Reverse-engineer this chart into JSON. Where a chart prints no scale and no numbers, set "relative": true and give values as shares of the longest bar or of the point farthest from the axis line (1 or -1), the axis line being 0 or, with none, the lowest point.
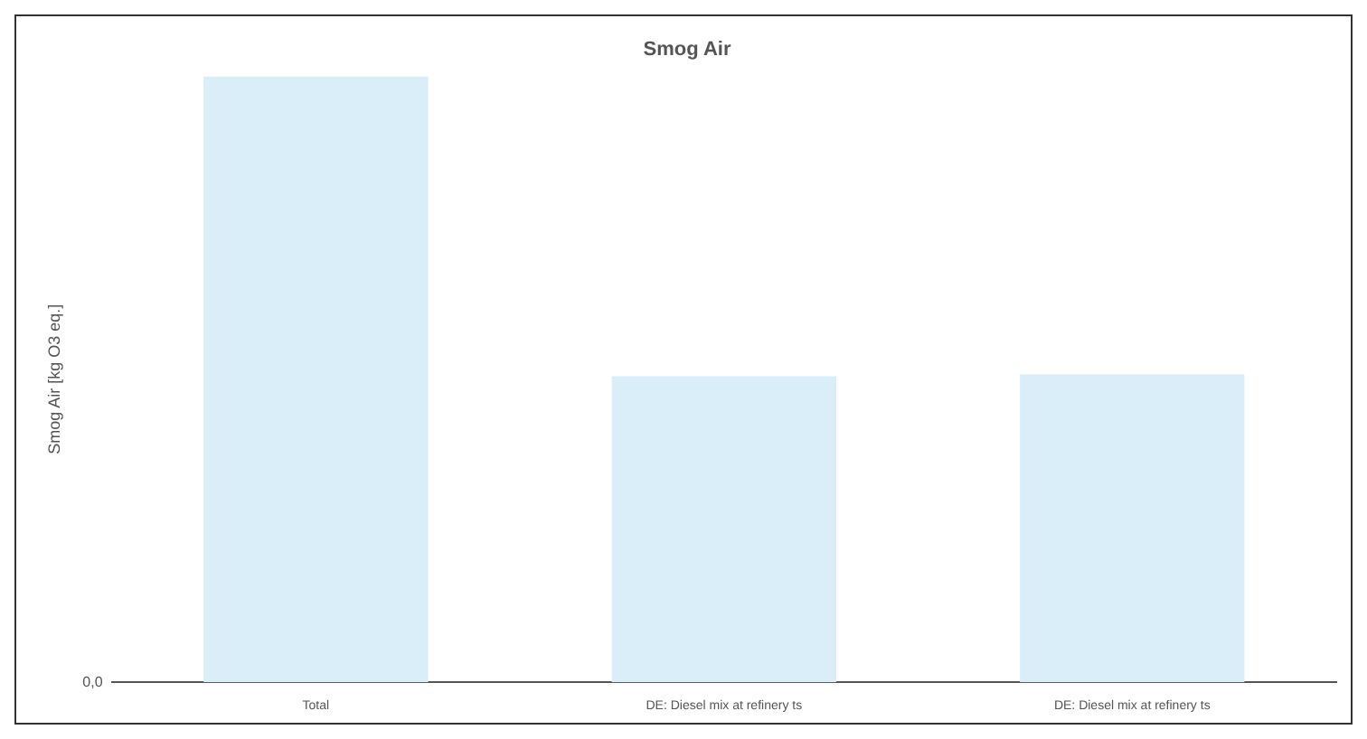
{
  "chart_data": {
    "type": "bar",
    "title": "Smog Air",
    "ylabel": "Smog Air [kg O3 eq.]",
    "categories": [
      "Total",
      "DE: Diesel mix at refinery ts",
      "DE: Diesel mix at refinery ts"
    ],
    "values": [
      1,
      0.505,
      0.508
    ],
    "color": "#d9eef9",
    "relative": true,
    "grid": false,
    "legend": false,
    "annotations": [
      "0,0"
    ]
  }
}
